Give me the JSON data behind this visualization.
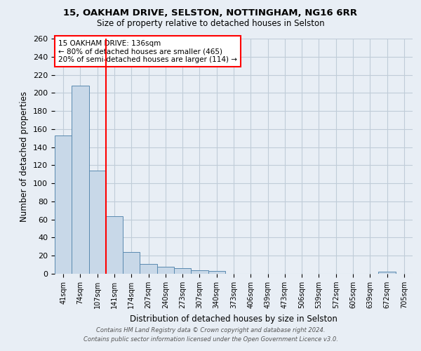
{
  "title1": "15, OAKHAM DRIVE, SELSTON, NOTTINGHAM, NG16 6RR",
  "title2": "Size of property relative to detached houses in Selston",
  "xlabel": "Distribution of detached houses by size in Selston",
  "ylabel": "Number of detached properties",
  "bar_labels": [
    "41sqm",
    "74sqm",
    "107sqm",
    "141sqm",
    "174sqm",
    "207sqm",
    "240sqm",
    "273sqm",
    "307sqm",
    "340sqm",
    "373sqm",
    "406sqm",
    "439sqm",
    "473sqm",
    "506sqm",
    "539sqm",
    "572sqm",
    "605sqm",
    "639sqm",
    "672sqm",
    "705sqm"
  ],
  "bar_values": [
    153,
    208,
    114,
    64,
    24,
    11,
    8,
    6,
    4,
    3,
    0,
    0,
    0,
    0,
    0,
    0,
    0,
    0,
    0,
    2,
    0
  ],
  "bar_color": "#c8d8e8",
  "bar_edge_color": "#5a8ab0",
  "red_line_index": 3,
  "annotation_line1": "15 OAKHAM DRIVE: 136sqm",
  "annotation_line2": "← 80% of detached houses are smaller (465)",
  "annotation_line3": "20% of semi-detached houses are larger (114) →",
  "annotation_box_color": "white",
  "annotation_box_edge_color": "red",
  "vline_color": "red",
  "ylim": [
    0,
    260
  ],
  "yticks": [
    0,
    20,
    40,
    60,
    80,
    100,
    120,
    140,
    160,
    180,
    200,
    220,
    240,
    260
  ],
  "grid_color": "#c0ccd8",
  "bg_color": "#e8eef5",
  "footer_text": "Contains HM Land Registry data © Crown copyright and database right 2024.\nContains public sector information licensed under the Open Government Licence v3.0."
}
